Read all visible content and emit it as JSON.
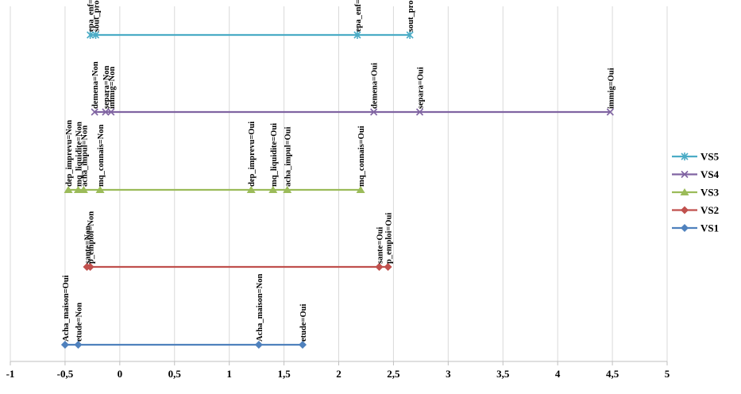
{
  "chart_data": {
    "type": "line",
    "xlim": [
      -1,
      5
    ],
    "xticks": [
      -1,
      -0.5,
      0,
      0.5,
      1,
      1.5,
      2,
      2.5,
      3,
      3.5,
      4,
      4.5,
      5
    ],
    "xtick_labels": [
      "-1",
      "-0,5",
      "0",
      "0,5",
      "1",
      "1,5",
      "2",
      "2,5",
      "3",
      "3,5",
      "4",
      "4,5",
      "5"
    ],
    "grid": "vertical",
    "legend": "right",
    "series": [
      {
        "name": "VS5",
        "color": "#4bacc6",
        "marker": "asterisk",
        "points": [
          {
            "x": -0.27,
            "label": "epa_enf=Non"
          },
          {
            "x": -0.22,
            "label": "sout_proch=Non"
          },
          {
            "x": 2.17,
            "label": "epa_enf=Oui"
          },
          {
            "x": 2.65,
            "label": "sout_proch=Oui"
          }
        ]
      },
      {
        "name": "VS4",
        "color": "#8064a2",
        "marker": "x",
        "points": [
          {
            "x": -0.23,
            "label": "demena=Non"
          },
          {
            "x": -0.13,
            "label": "separa=Non"
          },
          {
            "x": -0.08,
            "label": "immig=Non"
          },
          {
            "x": 2.32,
            "label": "demena=Oui"
          },
          {
            "x": 2.74,
            "label": "separa=Oui"
          },
          {
            "x": 4.48,
            "label": "immig=Oui"
          }
        ]
      },
      {
        "name": "VS3",
        "color": "#9bbb59",
        "marker": "triangle",
        "points": [
          {
            "x": -0.47,
            "label": "dep_imprevu=Non"
          },
          {
            "x": -0.38,
            "label": "mq_liquidite=Non"
          },
          {
            "x": -0.33,
            "label": "acha_impul=Non"
          },
          {
            "x": -0.18,
            "label": "mq_connais=Non"
          },
          {
            "x": 1.2,
            "label": "dep_imprevu=Oui"
          },
          {
            "x": 1.4,
            "label": "mq_liquidite=Oui"
          },
          {
            "x": 1.53,
            "label": "acha_impul=Oui"
          },
          {
            "x": 2.2,
            "label": "mq_connais=Oui"
          }
        ]
      },
      {
        "name": "VS2",
        "color": "#c0504d",
        "marker": "diamond",
        "points": [
          {
            "x": -0.3,
            "label": "sante=Non"
          },
          {
            "x": -0.27,
            "label": "p_emploi=Non"
          },
          {
            "x": 2.37,
            "label": "sante=Oui"
          },
          {
            "x": 2.45,
            "label": "p_emploi=Oui"
          }
        ]
      },
      {
        "name": "VS1",
        "color": "#4f81bd",
        "marker": "diamond",
        "points": [
          {
            "x": -0.5,
            "label": "Acha_maison=Oui"
          },
          {
            "x": -0.38,
            "label": "etude=Non"
          },
          {
            "x": 1.27,
            "label": "Acha_maison=Non"
          },
          {
            "x": 1.67,
            "label": "etude=Oui"
          }
        ]
      }
    ]
  }
}
